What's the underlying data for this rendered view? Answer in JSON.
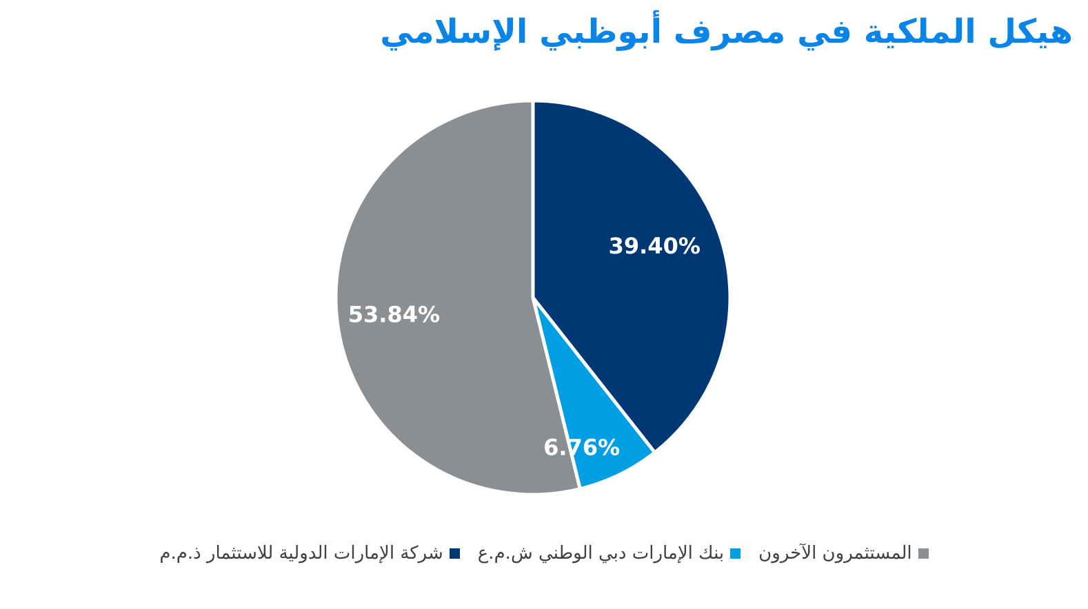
{
  "chart_data": {
    "type": "pie",
    "title": "هيكل الملكية في مصرف أبوظبي الإسلامي",
    "categories": [
      "شركة الإمارات الدولية للاستثمار ذ.م.م",
      "بنك الإمارات دبي الوطني ش.م.ع",
      "المستثمرون الآخرون"
    ],
    "values": [
      39.4,
      6.76,
      53.84
    ],
    "data_labels": [
      "39.40%",
      "6.76%",
      "53.84%"
    ],
    "colors": [
      "#003876",
      "#009ee3",
      "#8c8f91"
    ],
    "legend_position": "bottom"
  }
}
